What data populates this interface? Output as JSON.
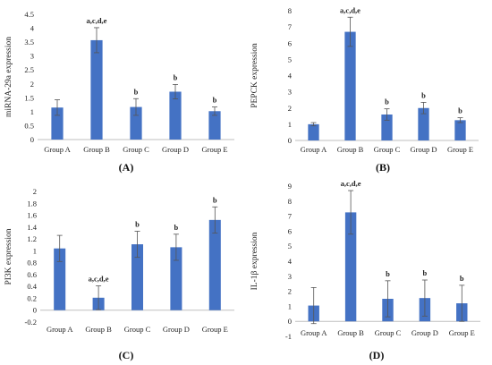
{
  "bar_color": "#4472C4",
  "chart_data": [
    {
      "type": "bar",
      "panel_label": "(A)",
      "ylabel": "miRNA-29a expression",
      "categories": [
        "Group A",
        "Group B",
        "Group C",
        "Group D",
        "Group E"
      ],
      "values": [
        1.15,
        3.57,
        1.17,
        1.72,
        1.02
      ],
      "errors": [
        0.28,
        0.45,
        0.3,
        0.26,
        0.15
      ],
      "annotations": [
        "",
        "a,c,d,e",
        "b",
        "b",
        "b"
      ],
      "ylim": [
        0,
        4.5
      ],
      "yticks": [
        0,
        0.5,
        1,
        1.5,
        2,
        2.5,
        3,
        3.5,
        4,
        4.5
      ],
      "ytick_labels": [
        "0",
        "0.5",
        "1",
        "1.5",
        "2",
        "2.5",
        "3",
        "3.5",
        "4",
        "4.5"
      ],
      "grid": false
    },
    {
      "type": "bar",
      "panel_label": "(B)",
      "ylabel": "PEPCK expression",
      "categories": [
        "Group A",
        "Group B",
        "Group C",
        "Group D",
        "Group E"
      ],
      "values": [
        1.0,
        6.7,
        1.6,
        2.0,
        1.25
      ],
      "errors": [
        0.1,
        0.9,
        0.35,
        0.35,
        0.15
      ],
      "annotations": [
        "",
        "a,c,d,e",
        "b",
        "b",
        "b"
      ],
      "ylim": [
        0,
        8
      ],
      "yticks": [
        0,
        1,
        2,
        3,
        4,
        5,
        6,
        7,
        8
      ],
      "ytick_labels": [
        "0",
        "1",
        "2",
        "3",
        "4",
        "5",
        "6",
        "7",
        "8"
      ],
      "grid": false
    },
    {
      "type": "bar",
      "panel_label": "(C)",
      "ylabel": "PI3K expression",
      "categories": [
        "Group A",
        "Group B",
        "Group C",
        "Group D",
        "Group E"
      ],
      "values": [
        1.04,
        0.21,
        1.11,
        1.06,
        1.52
      ],
      "errors": [
        0.22,
        0.2,
        0.22,
        0.22,
        0.22
      ],
      "annotations": [
        "",
        "a,c,d,e",
        "b",
        "b",
        "b"
      ],
      "ylim": [
        -0.2,
        2
      ],
      "yticks": [
        -0.2,
        0,
        0.2,
        0.4,
        0.6,
        0.8,
        1,
        1.2,
        1.4,
        1.6,
        1.8,
        2
      ],
      "ytick_labels": [
        "-0.2",
        "0",
        "0.2",
        "0.4",
        "0.6",
        "0.8",
        "1",
        "1.2",
        "1.4",
        "1.6",
        "1.8",
        "2"
      ],
      "grid": false
    },
    {
      "type": "bar",
      "panel_label": "(D)",
      "ylabel": "IL-1β expression",
      "categories": [
        "Group A",
        "Group B",
        "Group C",
        "Group D",
        "Group E"
      ],
      "values": [
        1.05,
        7.25,
        1.5,
        1.55,
        1.2
      ],
      "errors": [
        1.2,
        1.45,
        1.2,
        1.2,
        1.2
      ],
      "annotations": [
        "",
        "a,c,d,e",
        "b",
        "b",
        "b"
      ],
      "ylim": [
        -1,
        9
      ],
      "yticks": [
        -1,
        0,
        1,
        2,
        3,
        4,
        5,
        6,
        7,
        8,
        9
      ],
      "ytick_labels": [
        "-1",
        "0",
        "1",
        "2",
        "3",
        "4",
        "5",
        "6",
        "7",
        "8",
        "9"
      ],
      "grid": false
    }
  ]
}
